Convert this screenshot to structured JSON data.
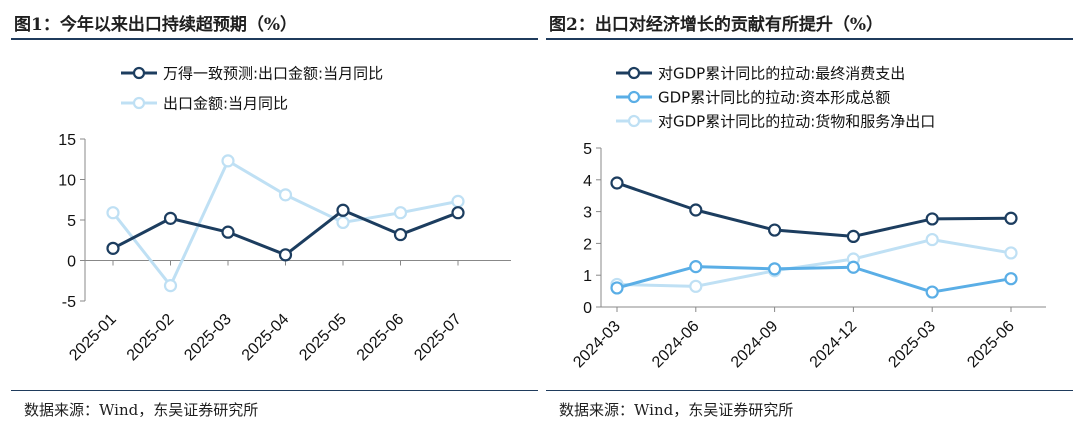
{
  "left_panel": {
    "title": "图1：今年以来出口持续超预期（%）",
    "source": "数据来源：Wind，东吴证券研究所"
  },
  "right_panel": {
    "title": "图2：出口对经济增长的贡献有所提升（%）",
    "source": "数据来源：Wind，东吴证券研究所"
  },
  "chart_data": [
    {
      "type": "line",
      "title": "今年以来出口持续超预期（%）",
      "categories": [
        "2025-01",
        "2025-02",
        "2025-03",
        "2025-04",
        "2025-05",
        "2025-06",
        "2025-07"
      ],
      "ylim": [
        -5,
        15
      ],
      "yticks": [
        -5,
        0,
        5,
        10,
        15
      ],
      "grid": false,
      "legend": "top-left",
      "series": [
        {
          "name": "万得一致预测:出口金额:当月同比",
          "color": "#1c3d5f",
          "values": [
            1.5,
            5.2,
            3.5,
            0.7,
            6.2,
            3.2,
            5.9
          ]
        },
        {
          "name": "出口金额:当月同比",
          "color": "#bfe0f4",
          "values": [
            5.9,
            -3.1,
            12.3,
            8.1,
            4.7,
            5.9,
            7.3
          ]
        }
      ]
    },
    {
      "type": "line",
      "title": "出口对经济增长的贡献有所提升（%）",
      "categories": [
        "2024-03",
        "2024-06",
        "2024-09",
        "2024-12",
        "2025-03",
        "2025-06"
      ],
      "ylim": [
        0,
        5
      ],
      "yticks": [
        0,
        1,
        2,
        3,
        4,
        5
      ],
      "grid": false,
      "legend": "top-left",
      "series": [
        {
          "name": "对GDP累计同比的拉动:最终消费支出",
          "color": "#1c3d5f",
          "values": [
            3.9,
            3.05,
            2.42,
            2.22,
            2.77,
            2.79
          ]
        },
        {
          "name": "GDP累计同比的拉动:资本形成总额",
          "color": "#5aaee6",
          "values": [
            0.6,
            1.27,
            1.2,
            1.25,
            0.47,
            0.89
          ]
        },
        {
          "name": "对GDP累计同比的拉动:货物和服务净出口",
          "color": "#bfe0f4",
          "values": [
            0.71,
            0.65,
            1.14,
            1.51,
            2.12,
            1.7
          ]
        }
      ]
    }
  ]
}
